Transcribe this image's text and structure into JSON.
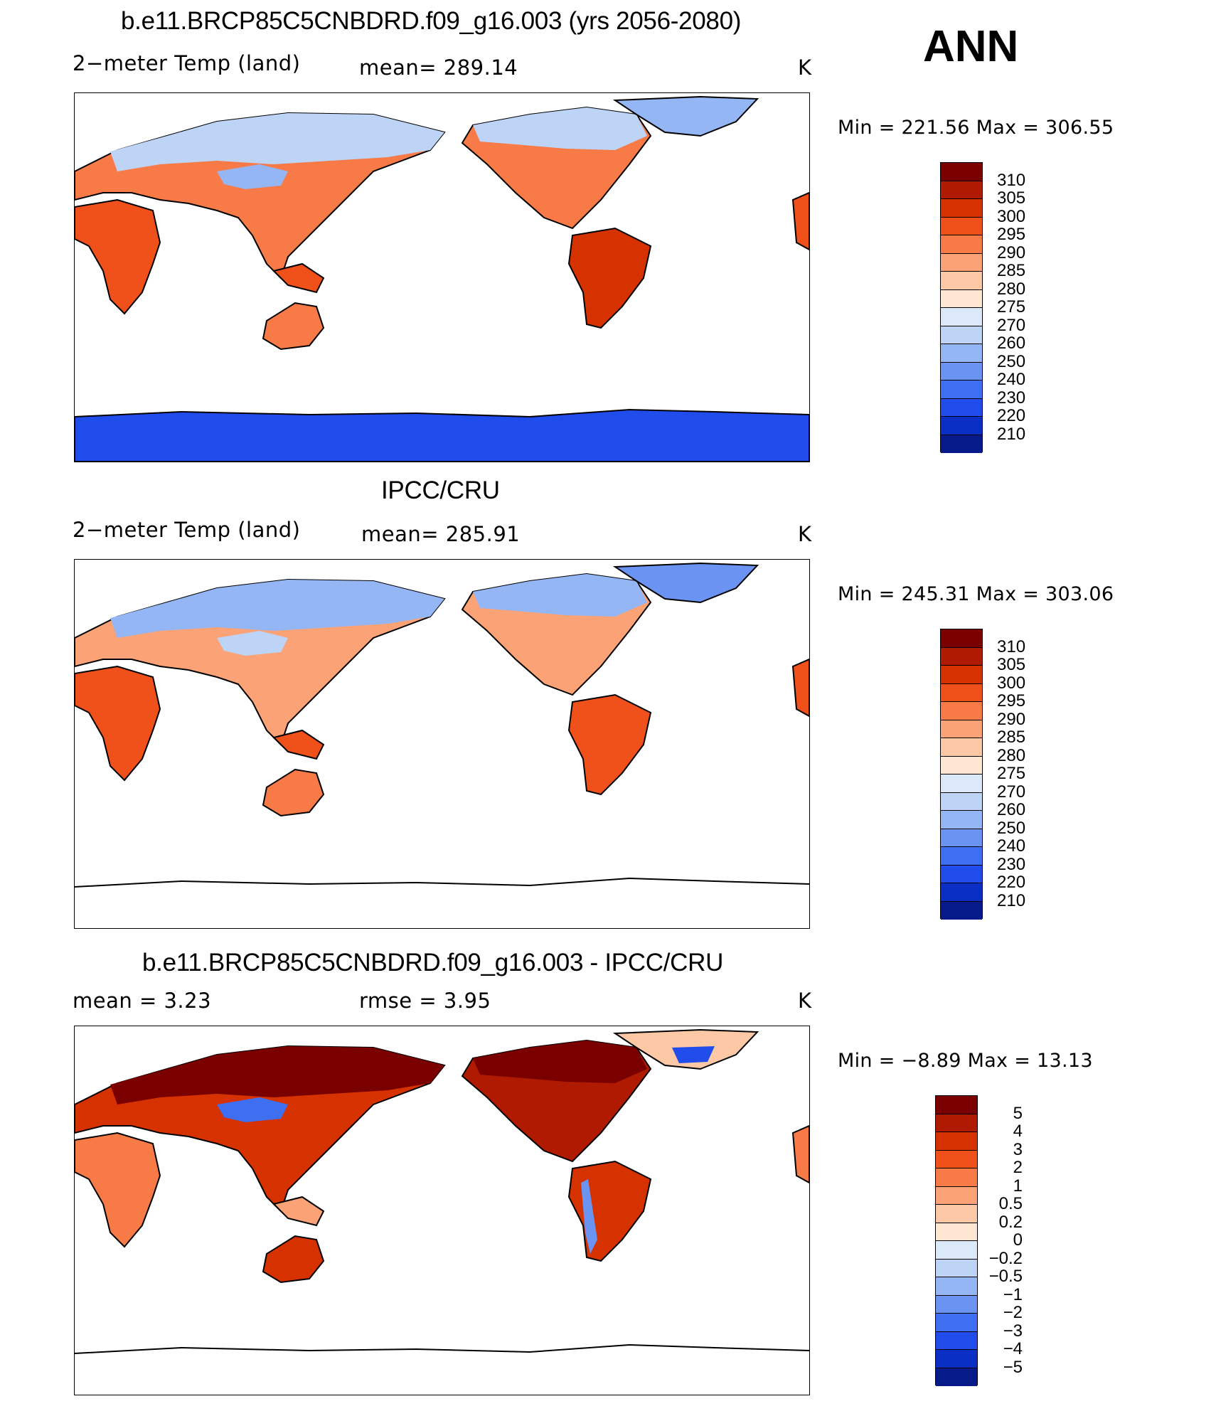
{
  "season": "ANN",
  "panels": [
    {
      "title": "b.e11.BRCP85C5CNBDRD.f09_g16.003 (yrs 2056-2080)",
      "variable": "2−meter Temp (land)",
      "stat1": "mean=  289.14",
      "units": "K",
      "minmax": "Min  =  221.56  Max  =  306.55"
    },
    {
      "title": "IPCC/CRU",
      "variable": "2−meter Temp (land)",
      "stat1": "mean=  285.91",
      "units": "K",
      "minmax": "Min  =  245.31  Max  =  303.06"
    },
    {
      "title": "b.e11.BRCP85C5CNBDRD.f09_g16.003 - IPCC/CRU",
      "variable": "mean  =     3.23",
      "stat1": "rmse  =     3.95",
      "units": "K",
      "minmax": "Min  =     −8.89  Max  =     13.13"
    }
  ],
  "colorbars": {
    "absolute": {
      "labels": [
        "310",
        "305",
        "300",
        "295",
        "290",
        "285",
        "280",
        "275",
        "270",
        "260",
        "250",
        "240",
        "230",
        "220",
        "210"
      ],
      "colors": [
        "#7a0000",
        "#b01a00",
        "#d63200",
        "#f0501a",
        "#f87a46",
        "#fba276",
        "#fcc8a6",
        "#fde7d2",
        "#dce9f8",
        "#bdd4f6",
        "#95b6f5",
        "#6a93f2",
        "#3e6ff0",
        "#1f4cea",
        "#0a2fc4",
        "#061a8a"
      ]
    },
    "difference": {
      "labels": [
        "5",
        "4",
        "3",
        "2",
        "1",
        "0.5",
        "0.2",
        "0",
        "−0.2",
        "−0.5",
        "−1",
        "−2",
        "−3",
        "−4",
        "−5"
      ],
      "colors": [
        "#7a0000",
        "#b01a00",
        "#d63200",
        "#f0501a",
        "#f87a46",
        "#fba276",
        "#fcc8a6",
        "#fde7d2",
        "#dce9f8",
        "#bdd4f6",
        "#95b6f5",
        "#6a93f2",
        "#3e6ff0",
        "#1f4cea",
        "#0a2fc4",
        "#061a8a"
      ]
    }
  }
}
